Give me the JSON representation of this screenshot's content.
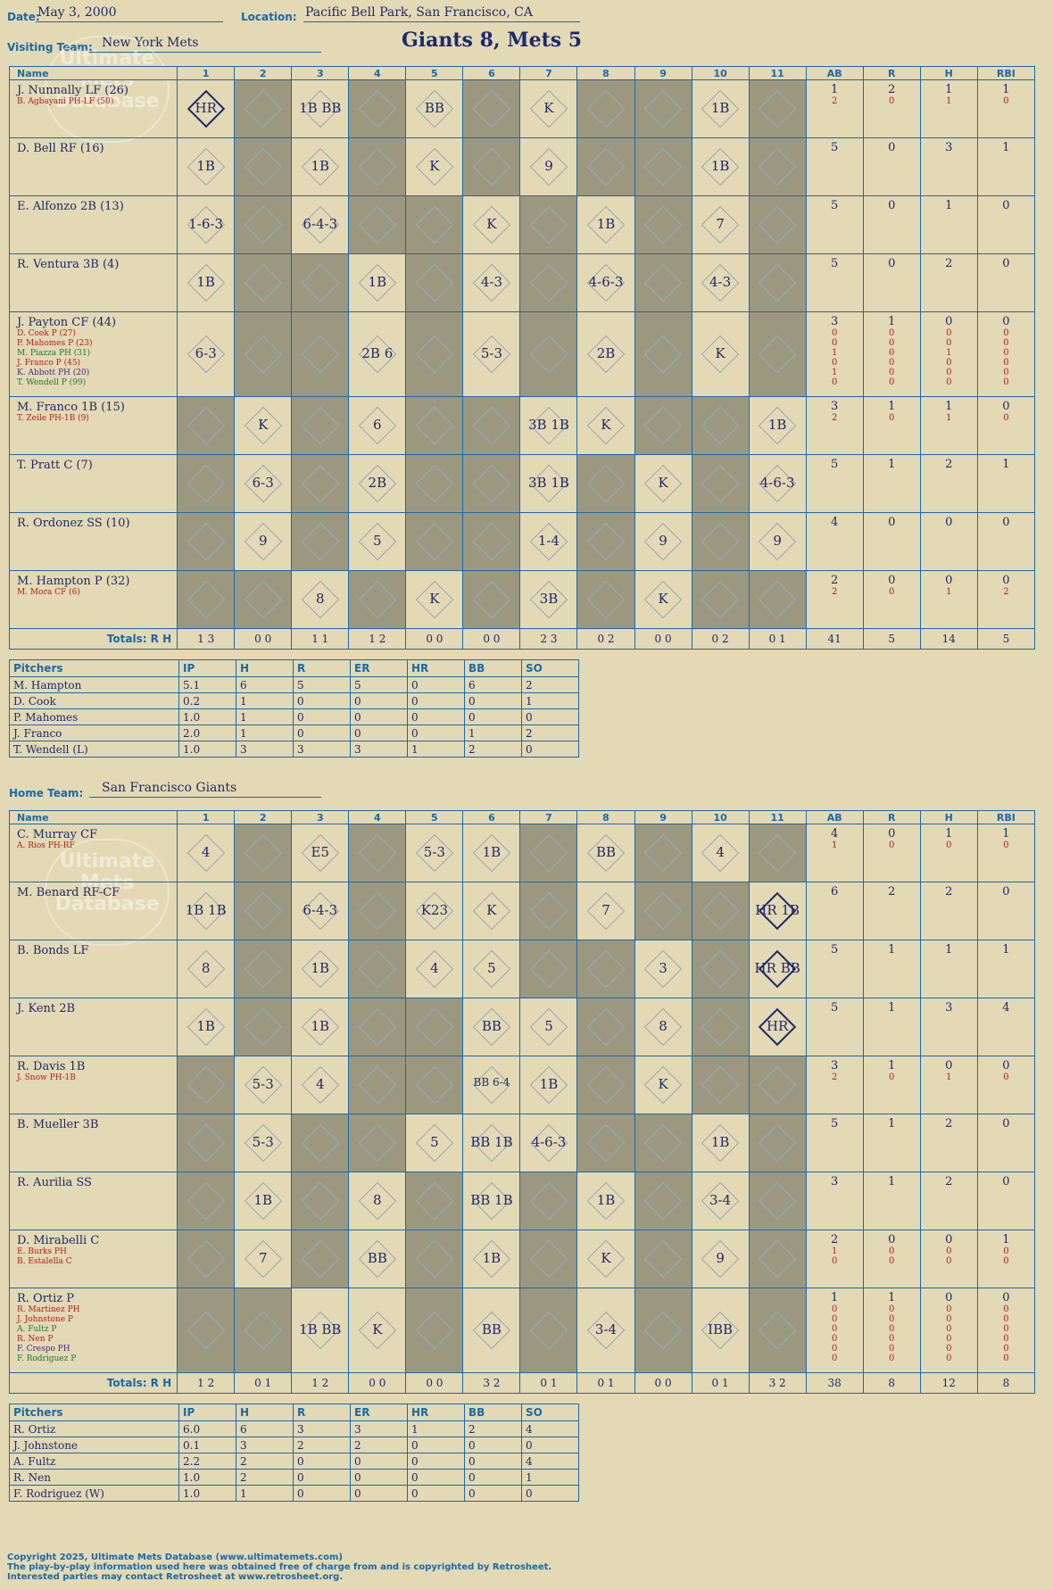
{
  "header": {
    "date_label": "Date:",
    "date": "May 3, 2000",
    "location_label": "Location:",
    "location": "Pacific Bell Park, San Francisco, CA",
    "visiting_label": "Visiting Team:",
    "visiting_team": "New York Mets",
    "score": "Giants 8, Mets 5",
    "home_label": "Home Team:",
    "home_team": "San Francisco Giants"
  },
  "columns": [
    "Name",
    "1",
    "2",
    "3",
    "4",
    "5",
    "6",
    "7",
    "8",
    "9",
    "10",
    "11",
    "AB",
    "R",
    "H",
    "RBI"
  ],
  "visitors": [
    {
      "name": "J. Nunnally LF (26)",
      "subs": [
        "B. Agbayani PH-LF (50)"
      ],
      "ab": "1",
      "r": "2",
      "h": "1",
      "rbi": "1",
      "ab2": [
        "2"
      ],
      "r2": [
        "0"
      ],
      "h2": [
        "1"
      ],
      "rbi2": [
        "0"
      ]
    },
    {
      "name": "D. Bell RF (16)",
      "subs": [],
      "ab": "5",
      "r": "0",
      "h": "3",
      "rbi": "1"
    },
    {
      "name": "E. Alfonzo 2B (13)",
      "subs": [],
      "ab": "5",
      "r": "0",
      "h": "1",
      "rbi": "0"
    },
    {
      "name": "R. Ventura 3B (4)",
      "subs": [],
      "ab": "5",
      "r": "0",
      "h": "2",
      "rbi": "0"
    },
    {
      "name": "J. Payton CF (44)",
      "subs": [
        "D. Cook P (27)",
        "P. Mahomes P (23)",
        "M. Piazza PH (31)",
        "J. Franco P (45)",
        "K. Abbott PH (20)",
        "T. Wendell P (99)"
      ],
      "ab": "3",
      "r": "1",
      "h": "0",
      "rbi": "0",
      "ab2": [
        "0",
        "0",
        "1",
        "0",
        "1",
        "0"
      ],
      "r2": [
        "0",
        "0",
        "0",
        "0",
        "0",
        "0"
      ],
      "h2": [
        "0",
        "0",
        "1",
        "0",
        "0",
        "0"
      ],
      "rbi2": [
        "0",
        "0",
        "0",
        "0",
        "0",
        "0"
      ]
    },
    {
      "name": "M. Franco 1B (15)",
      "subs": [
        "T. Zeile PH-1B (9)"
      ],
      "ab": "3",
      "r": "1",
      "h": "1",
      "rbi": "0",
      "ab2": [
        "2"
      ],
      "r2": [
        "0"
      ],
      "h2": [
        "1"
      ],
      "rbi2": [
        "0"
      ]
    },
    {
      "name": "T. Pratt C (7)",
      "subs": [],
      "ab": "5",
      "r": "1",
      "h": "2",
      "rbi": "1"
    },
    {
      "name": "R. Ordonez SS (10)",
      "subs": [],
      "ab": "4",
      "r": "0",
      "h": "0",
      "rbi": "0"
    },
    {
      "name": "M. Hampton P (32)",
      "subs": [
        "M. Mora CF (6)"
      ],
      "ab": "2",
      "r": "0",
      "h": "0",
      "rbi": "0",
      "ab2": [
        "2"
      ],
      "r2": [
        "0"
      ],
      "h2": [
        "1"
      ],
      "rbi2": [
        "2"
      ]
    }
  ],
  "visitor_totals": {
    "label": "Totals:",
    "rh_label": "R     H",
    "innings": [
      "1 3",
      "0 0",
      "1 1",
      "1 2",
      "0 0",
      "0 0",
      "2 3",
      "0 2",
      "0 0",
      "0 2",
      "0 1"
    ],
    "ab": "41",
    "r": "5",
    "h": "14",
    "rbi": "5"
  },
  "visitor_pitchers": {
    "headers": [
      "Pitchers",
      "IP",
      "H",
      "R",
      "ER",
      "HR",
      "BB",
      "SO"
    ],
    "rows": [
      [
        "M. Hampton",
        "5.1",
        "6",
        "5",
        "5",
        "0",
        "6",
        "2"
      ],
      [
        "D. Cook",
        "0.2",
        "1",
        "0",
        "0",
        "0",
        "0",
        "1"
      ],
      [
        "P. Mahomes",
        "1.0",
        "1",
        "0",
        "0",
        "0",
        "0",
        "0"
      ],
      [
        "J. Franco",
        "2.0",
        "1",
        "0",
        "0",
        "0",
        "1",
        "2"
      ],
      [
        "T. Wendell (L)",
        "1.0",
        "3",
        "3",
        "3",
        "1",
        "2",
        "0"
      ]
    ]
  },
  "home": [
    {
      "name": "C. Murray CF",
      "subs": [
        "A. Rios PH-RF"
      ],
      "ab": "4",
      "r": "0",
      "h": "1",
      "rbi": "1",
      "ab2": [
        "1"
      ],
      "r2": [
        "0"
      ],
      "h2": [
        "0"
      ],
      "rbi2": [
        "0"
      ]
    },
    {
      "name": "M. Benard RF-CF",
      "subs": [],
      "ab": "6",
      "r": "2",
      "h": "2",
      "rbi": "0"
    },
    {
      "name": "B. Bonds LF",
      "subs": [],
      "ab": "5",
      "r": "1",
      "h": "1",
      "rbi": "1"
    },
    {
      "name": "J. Kent 2B",
      "subs": [],
      "ab": "5",
      "r": "1",
      "h": "3",
      "rbi": "4"
    },
    {
      "name": "R. Davis 1B",
      "subs": [
        "J. Snow PH-1B"
      ],
      "ab": "3",
      "r": "1",
      "h": "0",
      "rbi": "0",
      "ab2": [
        "2"
      ],
      "r2": [
        "0"
      ],
      "h2": [
        "1"
      ],
      "rbi2": [
        "0"
      ]
    },
    {
      "name": "B. Mueller 3B",
      "subs": [],
      "ab": "5",
      "r": "1",
      "h": "2",
      "rbi": "0"
    },
    {
      "name": "R. Aurilia SS",
      "subs": [],
      "ab": "3",
      "r": "1",
      "h": "2",
      "rbi": "0"
    },
    {
      "name": "D. Mirabelli C",
      "subs": [
        "E. Burks PH",
        "B. Estalella C"
      ],
      "ab": "2",
      "r": "0",
      "h": "0",
      "rbi": "1",
      "ab2": [
        "1",
        "0"
      ],
      "r2": [
        "0",
        "0"
      ],
      "h2": [
        "0",
        "0"
      ],
      "rbi2": [
        "0",
        "0"
      ]
    },
    {
      "name": "R. Ortiz P",
      "subs": [
        "R. Martinez PH",
        "J. Johnstone P",
        "A. Fultz P",
        "R. Nen P",
        "F. Crespo PH",
        "F. Rodriguez P"
      ],
      "ab": "1",
      "r": "1",
      "h": "0",
      "rbi": "0",
      "ab2": [
        "0",
        "0",
        "0",
        "0",
        "0",
        "0"
      ],
      "r2": [
        "0",
        "0",
        "0",
        "0",
        "0",
        "0"
      ],
      "h2": [
        "0",
        "0",
        "0",
        "0",
        "0",
        "0"
      ],
      "rbi2": [
        "0",
        "0",
        "0",
        "0",
        "0",
        "0"
      ]
    }
  ],
  "home_totals": {
    "label": "Totals:",
    "rh_label": "R     H",
    "innings": [
      "1 2",
      "0 1",
      "1 2",
      "0 0",
      "0 0",
      "3 2",
      "0 1",
      "0 1",
      "0 0",
      "0 1",
      "3 2"
    ],
    "ab": "38",
    "r": "8",
    "h": "12",
    "rbi": "8"
  },
  "home_pitchers": {
    "headers": [
      "Pitchers",
      "IP",
      "H",
      "R",
      "ER",
      "HR",
      "BB",
      "SO"
    ],
    "rows": [
      [
        "R. Ortiz",
        "6.0",
        "6",
        "3",
        "3",
        "1",
        "2",
        "4"
      ],
      [
        "J. Johnstone",
        "0.1",
        "3",
        "2",
        "2",
        "0",
        "0",
        "0"
      ],
      [
        "A. Fultz",
        "2.2",
        "2",
        "0",
        "0",
        "0",
        "0",
        "4"
      ],
      [
        "R. Nen",
        "1.0",
        "2",
        "0",
        "0",
        "0",
        "0",
        "1"
      ],
      [
        "F. Rodriguez (W)",
        "1.0",
        "1",
        "0",
        "0",
        "0",
        "0",
        "0"
      ]
    ]
  },
  "visitor_plays": [
    [
      "HR",
      "",
      "1B BB",
      "",
      "BB",
      "",
      "K",
      "",
      "",
      "1B",
      ""
    ],
    [
      "1B",
      "",
      "1B",
      "",
      "K",
      "",
      "9",
      "",
      "",
      "1B",
      ""
    ],
    [
      "1-6-3",
      "",
      "6-4-3",
      "",
      "",
      "K",
      "",
      "1B",
      "",
      "7",
      ""
    ],
    [
      "1B",
      "",
      "",
      "1B",
      "",
      "4-3",
      "",
      "4-6-3",
      "",
      "4-3",
      ""
    ],
    [
      "6-3",
      "",
      "",
      "2B 6",
      "",
      "5-3",
      "",
      "2B",
      "",
      "K",
      ""
    ],
    [
      "",
      "K",
      "",
      "6",
      "",
      "",
      "3B 1B",
      "K",
      "",
      "",
      "1B"
    ],
    [
      "",
      "6-3",
      "",
      "2B",
      "",
      "",
      "3B 1B",
      "",
      "K",
      "",
      "4-6-3"
    ],
    [
      "",
      "9",
      "",
      "5",
      "",
      "",
      "1-4",
      "",
      "9",
      "",
      "9"
    ],
    [
      "",
      "",
      "8",
      "",
      "K",
      "",
      "3B",
      "",
      "K",
      "",
      ""
    ]
  ],
  "home_plays": [
    [
      "4",
      "",
      "E5",
      "",
      "5-3",
      "1B",
      "",
      "BB",
      "",
      "4",
      ""
    ],
    [
      "1B 1B",
      "",
      "6-4-3",
      "",
      "K23",
      "K",
      "",
      "7",
      "",
      "",
      "HR 1B"
    ],
    [
      "8",
      "",
      "1B",
      "",
      "4",
      "5",
      "",
      "",
      "3",
      "",
      "HR BB"
    ],
    [
      "1B",
      "",
      "1B",
      "",
      "",
      "BB",
      "5",
      "",
      "8",
      "",
      "HR"
    ],
    [
      "",
      "5-3",
      "4",
      "",
      "",
      "BB 6-4",
      "1B",
      "",
      "K",
      "",
      ""
    ],
    [
      "",
      "5-3",
      "",
      "",
      "5",
      "BB 1B",
      "4-6-3",
      "",
      "",
      "1B",
      ""
    ],
    [
      "",
      "1B",
      "",
      "8",
      "",
      "BB 1B",
      "",
      "1B",
      "",
      "3-4",
      ""
    ],
    [
      "",
      "7",
      "",
      "BB",
      "",
      "1B",
      "",
      "K",
      "",
      "9",
      ""
    ],
    [
      "",
      "",
      "1B BB",
      "K",
      "",
      "BB",
      "",
      "3-4",
      "",
      "IBB",
      ""
    ]
  ],
  "footer": [
    "Copyright 2025, Ultimate Mets Database (www.ultimatemets.com)",
    "The play-by-play information used here was obtained free of charge from and is copyrighted by Retrosheet.",
    "Interested parties may contact Retrosheet at www.retrosheet.org."
  ]
}
